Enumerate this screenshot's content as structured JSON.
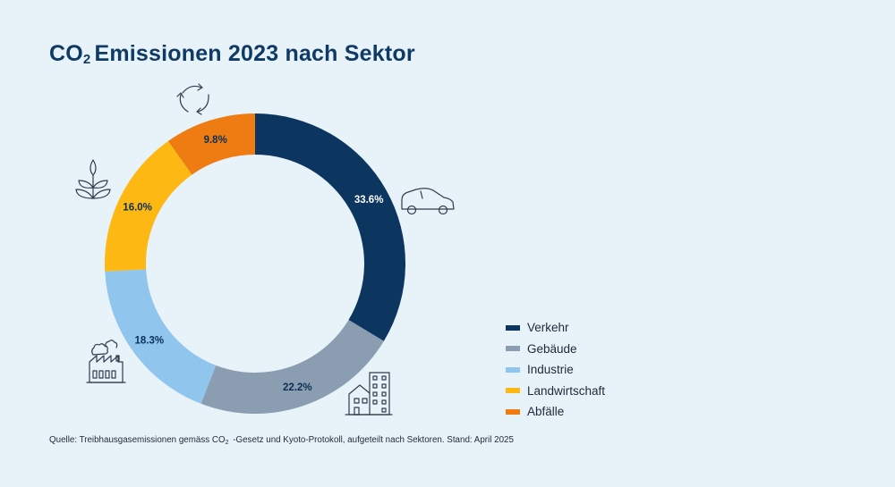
{
  "title": {
    "pre": "CO",
    "sub": "2",
    "post": "Emissionen 2023 nach Sektor"
  },
  "source": {
    "pre": "Quelle: Treibhausgasemissionen gemäss CO",
    "sub": "2",
    "post": " -Gesetz und Kyoto-Protokoll, aufgeteilt nach Sektoren. Stand: April 2025"
  },
  "chart_data": {
    "type": "pie",
    "variant": "donut",
    "title": "CO₂ Emissionen 2023 nach Sektor",
    "legend_position": "right",
    "categories": [
      "Verkehr",
      "Gebäude",
      "Industrie",
      "Landwirtschaft",
      "Abfälle"
    ],
    "values": [
      33.6,
      22.2,
      18.3,
      16.0,
      9.8
    ],
    "labels": [
      "33.6%",
      "22.2%",
      "18.3%",
      "16.0%",
      "9.8%"
    ],
    "colors": [
      "#0c3660",
      "#8a9db1",
      "#90c6ee",
      "#fdb813",
      "#ee7c12"
    ],
    "label_colors": [
      "#ffffff",
      "#0c2f55",
      "#0c2f55",
      "#0c2f55",
      "#0c2f55"
    ],
    "icons": [
      "car-icon",
      "building-icon",
      "factory-icon",
      "plant-icon",
      "recycle-icon"
    ]
  }
}
